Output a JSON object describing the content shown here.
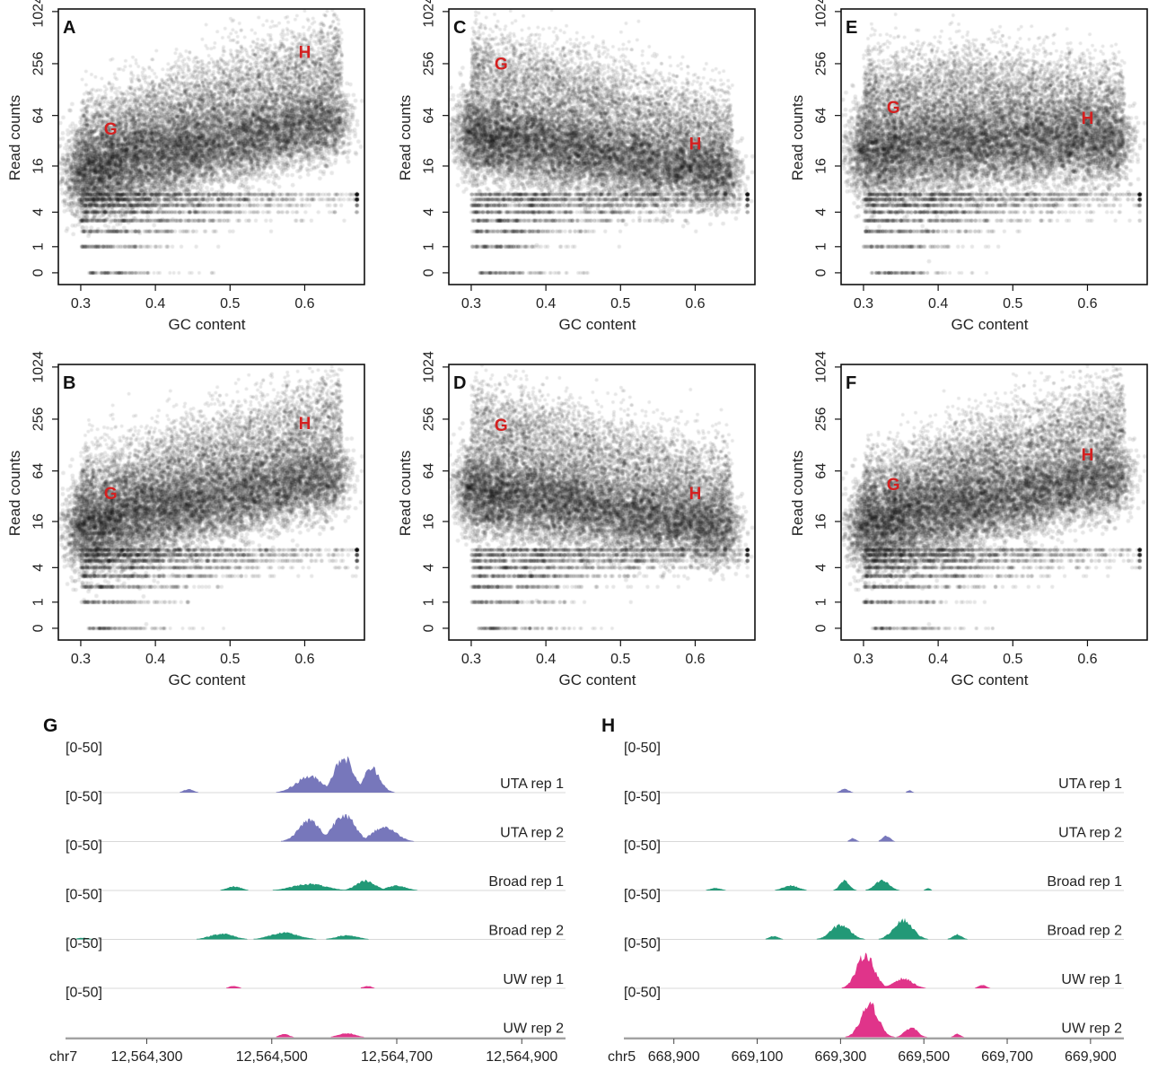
{
  "chart_data": [
    {
      "type": "scatter",
      "panel": "A",
      "xlabel": "GC content",
      "ylabel": "Read counts",
      "xlim": [
        0.27,
        0.68
      ],
      "x_ticks": [
        "0.3",
        "0.4",
        "0.5",
        "0.6"
      ],
      "y_ticks": [
        "0",
        "1",
        "4",
        "16",
        "64",
        "256",
        "1024"
      ],
      "y_scale": "log2 (counts+1)",
      "point_color": "#000000",
      "cloud_shape": "increasing",
      "annotations": [
        {
          "label": "G",
          "x": 0.34,
          "y": 45
        },
        {
          "label": "H",
          "x": 0.6,
          "y": 350
        }
      ]
    },
    {
      "type": "scatter",
      "panel": "B",
      "xlabel": "GC content",
      "ylabel": "Read counts",
      "xlim": [
        0.27,
        0.68
      ],
      "x_ticks": [
        "0.3",
        "0.4",
        "0.5",
        "0.6"
      ],
      "y_ticks": [
        "0",
        "1",
        "4",
        "16",
        "64",
        "256",
        "1024"
      ],
      "y_scale": "log2 (counts+1)",
      "point_color": "#000000",
      "cloud_shape": "increasing",
      "annotations": [
        {
          "label": "G",
          "x": 0.34,
          "y": 35
        },
        {
          "label": "H",
          "x": 0.6,
          "y": 230
        }
      ]
    },
    {
      "type": "scatter",
      "panel": "C",
      "xlabel": "GC content",
      "ylabel": "Read counts",
      "xlim": [
        0.27,
        0.68
      ],
      "x_ticks": [
        "0.3",
        "0.4",
        "0.5",
        "0.6"
      ],
      "y_ticks": [
        "0",
        "1",
        "4",
        "16",
        "64",
        "256",
        "1024"
      ],
      "y_scale": "log2 (counts+1)",
      "point_color": "#000000",
      "cloud_shape": "decreasing",
      "annotations": [
        {
          "label": "G",
          "x": 0.34,
          "y": 256
        },
        {
          "label": "H",
          "x": 0.6,
          "y": 30
        }
      ]
    },
    {
      "type": "scatter",
      "panel": "D",
      "xlabel": "GC content",
      "ylabel": "Read counts",
      "xlim": [
        0.27,
        0.68
      ],
      "x_ticks": [
        "0.3",
        "0.4",
        "0.5",
        "0.6"
      ],
      "y_ticks": [
        "0",
        "1",
        "4",
        "16",
        "64",
        "256",
        "1024"
      ],
      "y_scale": "log2 (counts+1)",
      "point_color": "#000000",
      "cloud_shape": "decreasing",
      "annotations": [
        {
          "label": "G",
          "x": 0.34,
          "y": 220
        },
        {
          "label": "H",
          "x": 0.6,
          "y": 35
        }
      ]
    },
    {
      "type": "scatter",
      "panel": "E",
      "xlabel": "GC content",
      "ylabel": "Read counts",
      "xlim": [
        0.27,
        0.68
      ],
      "x_ticks": [
        "0.3",
        "0.4",
        "0.5",
        "0.6"
      ],
      "y_ticks": [
        "0",
        "1",
        "4",
        "16",
        "64",
        "256",
        "1024"
      ],
      "y_scale": "log2 (counts+1)",
      "point_color": "#000000",
      "cloud_shape": "flat",
      "annotations": [
        {
          "label": "G",
          "x": 0.34,
          "y": 80
        },
        {
          "label": "H",
          "x": 0.6,
          "y": 60
        }
      ]
    },
    {
      "type": "scatter",
      "panel": "F",
      "xlabel": "GC content",
      "ylabel": "Read counts",
      "xlim": [
        0.27,
        0.68
      ],
      "x_ticks": [
        "0.3",
        "0.4",
        "0.5",
        "0.6"
      ],
      "y_ticks": [
        "0",
        "1",
        "4",
        "16",
        "64",
        "256",
        "1024"
      ],
      "y_scale": "log2 (counts+1)",
      "point_color": "#000000",
      "cloud_shape": "increasing",
      "annotations": [
        {
          "label": "G",
          "x": 0.34,
          "y": 45
        },
        {
          "label": "H",
          "x": 0.6,
          "y": 100
        }
      ]
    },
    {
      "type": "area",
      "panel": "G",
      "chromosome": "chr7",
      "x_ticks": [
        "12,564,300",
        "12,564,500",
        "12,564,700",
        "12,564,900"
      ],
      "x_tick_values": [
        12564300,
        12564500,
        12564700,
        12564900
      ],
      "xlim": [
        12564170,
        12564970
      ],
      "tracks": [
        {
          "name": "UTA rep 1",
          "range": "[0-50]",
          "color": "#7777bb",
          "peaks": [
            {
              "center": 12564367,
              "width": 22,
              "height": 4
            },
            {
              "center": 12564560,
              "width": 55,
              "height": 20
            },
            {
              "center": 12564615,
              "width": 40,
              "height": 44
            },
            {
              "center": 12564660,
              "width": 35,
              "height": 30
            }
          ]
        },
        {
          "name": "UTA rep 2",
          "range": "[0-50]",
          "color": "#7777bb",
          "peaks": [
            {
              "center": 12564560,
              "width": 45,
              "height": 26
            },
            {
              "center": 12564615,
              "width": 45,
              "height": 34
            },
            {
              "center": 12564680,
              "width": 50,
              "height": 18
            }
          ]
        },
        {
          "name": "Broad rep 1",
          "range": "[0-50]",
          "color": "#229977",
          "peaks": [
            {
              "center": 12564440,
              "width": 30,
              "height": 5
            },
            {
              "center": 12564560,
              "width": 70,
              "height": 8
            },
            {
              "center": 12564650,
              "width": 40,
              "height": 12
            },
            {
              "center": 12564700,
              "width": 40,
              "height": 6
            }
          ]
        },
        {
          "name": "Broad rep 2",
          "range": "[0-50]",
          "color": "#229977",
          "peaks": [
            {
              "center": 12564198,
              "width": 25,
              "height": 2
            },
            {
              "center": 12564420,
              "width": 50,
              "height": 7
            },
            {
              "center": 12564520,
              "width": 60,
              "height": 8
            },
            {
              "center": 12564620,
              "width": 45,
              "height": 5
            }
          ]
        },
        {
          "name": "UW rep 1",
          "range": "[0-50]",
          "color": "#e0348a",
          "peaks": [
            {
              "center": 12564439,
              "width": 18,
              "height": 3
            },
            {
              "center": 12564653,
              "width": 18,
              "height": 3
            }
          ]
        },
        {
          "name": "UW rep 2",
          "range": "[0-50]",
          "color": "#e0348a",
          "peaks": [
            {
              "center": 12564520,
              "width": 20,
              "height": 4
            },
            {
              "center": 12564620,
              "width": 35,
              "height": 5
            }
          ]
        }
      ]
    },
    {
      "type": "area",
      "panel": "H",
      "chromosome": "chr5",
      "x_ticks": [
        "668,900",
        "669,100",
        "669,300",
        "669,500",
        "669,700",
        "669,900"
      ],
      "x_tick_values": [
        668900,
        669100,
        669300,
        669500,
        669700,
        669900
      ],
      "xlim": [
        668780,
        669980
      ],
      "tracks": [
        {
          "name": "UTA rep 1",
          "range": "[0-50]",
          "color": "#7777bb",
          "peaks": [
            {
              "center": 669310,
              "width": 25,
              "height": 5
            },
            {
              "center": 669465,
              "width": 15,
              "height": 3
            }
          ]
        },
        {
          "name": "UTA rep 2",
          "range": "[0-50]",
          "color": "#7777bb",
          "peaks": [
            {
              "center": 669330,
              "width": 20,
              "height": 4
            },
            {
              "center": 669410,
              "width": 25,
              "height": 7
            }
          ]
        },
        {
          "name": "Broad rep 1",
          "range": "[0-50]",
          "color": "#229977",
          "peaks": [
            {
              "center": 669000,
              "width": 35,
              "height": 3
            },
            {
              "center": 669180,
              "width": 50,
              "height": 6
            },
            {
              "center": 669310,
              "width": 30,
              "height": 12
            },
            {
              "center": 669400,
              "width": 45,
              "height": 12
            },
            {
              "center": 669510,
              "width": 15,
              "height": 3
            }
          ]
        },
        {
          "name": "Broad rep 2",
          "range": "[0-50]",
          "color": "#229977",
          "peaks": [
            {
              "center": 669140,
              "width": 30,
              "height": 4
            },
            {
              "center": 669300,
              "width": 60,
              "height": 18
            },
            {
              "center": 669450,
              "width": 60,
              "height": 24
            },
            {
              "center": 669580,
              "width": 30,
              "height": 6
            }
          ]
        },
        {
          "name": "UW rep 1",
          "range": "[0-50]",
          "color": "#e0348a",
          "peaks": [
            {
              "center": 669360,
              "width": 55,
              "height": 42
            },
            {
              "center": 669450,
              "width": 60,
              "height": 12
            },
            {
              "center": 669640,
              "width": 25,
              "height": 4
            }
          ]
        },
        {
          "name": "UW rep 2",
          "range": "[0-50]",
          "color": "#e0348a",
          "peaks": [
            {
              "center": 669370,
              "width": 55,
              "height": 40
            },
            {
              "center": 669470,
              "width": 40,
              "height": 12
            },
            {
              "center": 669580,
              "width": 20,
              "height": 4
            }
          ]
        }
      ]
    }
  ]
}
